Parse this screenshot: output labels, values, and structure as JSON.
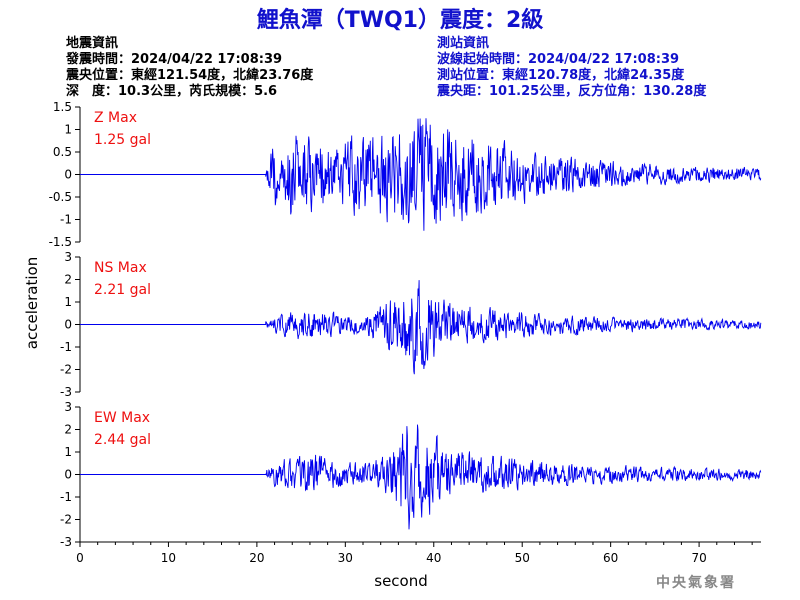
{
  "title": "鯉魚潭（TWQ1）震度：2級",
  "quake_info": {
    "heading": "地震資訊",
    "time": "發震時間：2024/04/22 17:08:39",
    "epicenter": "震央位置：東經121.54度，北緯23.76度",
    "depth_magnitude": "深　度：10.3公里，芮氏規模：5.6"
  },
  "station_info": {
    "heading": "測站資訊",
    "wave_start": "波線起始時間：2024/04/22 17:08:39",
    "location": "測站位置：東經120.78度，北緯24.35度",
    "distance": "震央距：101.25公里，反方位角：130.28度"
  },
  "colors": {
    "trace": "#0000ee",
    "title": "#1111cc",
    "max_label": "#ee1111",
    "axis": "#000000"
  },
  "chart_data": {
    "type": "line",
    "xlabel": "second",
    "ylabel": "acceleration",
    "xlim": [
      0,
      77
    ],
    "xticks": [
      0,
      10,
      20,
      30,
      40,
      50,
      60,
      70
    ],
    "onset_seconds": 21,
    "panels": [
      {
        "name": "Z",
        "max_label": "Z Max",
        "max_value": "1.25 gal",
        "peak": 1.25,
        "ylim": [
          -1.5,
          1.5
        ],
        "yticks": [
          -1.5,
          -1,
          -0.5,
          0,
          0.5,
          1,
          1.5
        ],
        "envelope": [
          [
            21,
            0.15
          ],
          [
            22,
            0.7
          ],
          [
            23,
            0.55
          ],
          [
            24,
            0.85
          ],
          [
            25,
            0.9
          ],
          [
            27,
            0.7
          ],
          [
            29,
            0.55
          ],
          [
            31,
            0.7
          ],
          [
            33,
            0.75
          ],
          [
            35,
            0.85
          ],
          [
            37,
            1.05
          ],
          [
            38,
            1.2
          ],
          [
            40,
            1.0
          ],
          [
            42,
            0.9
          ],
          [
            45,
            0.75
          ],
          [
            48,
            0.55
          ],
          [
            52,
            0.4
          ],
          [
            57,
            0.3
          ],
          [
            63,
            0.2
          ],
          [
            70,
            0.15
          ],
          [
            77,
            0.12
          ]
        ]
      },
      {
        "name": "NS",
        "max_label": "NS Max",
        "max_value": "2.21 gal",
        "peak": 2.21,
        "ylim": [
          -3,
          3
        ],
        "yticks": [
          -3,
          -2,
          -1,
          0,
          1,
          2,
          3
        ],
        "envelope": [
          [
            21,
            0.15
          ],
          [
            22,
            0.35
          ],
          [
            24,
            0.6
          ],
          [
            26,
            0.7
          ],
          [
            28,
            0.6
          ],
          [
            30,
            0.45
          ],
          [
            32,
            0.4
          ],
          [
            34,
            0.9
          ],
          [
            36,
            1.5
          ],
          [
            37,
            2.1
          ],
          [
            38,
            2.0
          ],
          [
            39,
            1.9
          ],
          [
            40,
            1.6
          ],
          [
            41,
            1.2
          ],
          [
            43,
            0.9
          ],
          [
            46,
            0.75
          ],
          [
            50,
            0.6
          ],
          [
            55,
            0.45
          ],
          [
            60,
            0.35
          ],
          [
            65,
            0.3
          ],
          [
            70,
            0.25
          ],
          [
            77,
            0.2
          ]
        ]
      },
      {
        "name": "EW",
        "max_label": "EW Max",
        "max_value": "2.44 gal",
        "peak": 2.44,
        "ylim": [
          -3,
          3
        ],
        "yticks": [
          -3,
          -2,
          -1,
          0,
          1,
          2,
          3
        ],
        "envelope": [
          [
            21,
            0.2
          ],
          [
            22,
            0.5
          ],
          [
            23,
            0.6
          ],
          [
            25,
            0.75
          ],
          [
            27,
            0.8
          ],
          [
            28,
            0.6
          ],
          [
            30,
            0.45
          ],
          [
            33,
            0.5
          ],
          [
            35,
            0.8
          ],
          [
            36,
            1.5
          ],
          [
            37,
            2.2
          ],
          [
            38,
            2.0
          ],
          [
            39,
            1.8
          ],
          [
            40,
            1.6
          ],
          [
            41,
            1.3
          ],
          [
            42,
            1.0
          ],
          [
            44,
            0.9
          ],
          [
            47,
            0.75
          ],
          [
            50,
            0.6
          ],
          [
            55,
            0.45
          ],
          [
            60,
            0.35
          ],
          [
            65,
            0.3
          ],
          [
            70,
            0.25
          ],
          [
            77,
            0.2
          ]
        ]
      }
    ]
  },
  "logo": "中央氣象署"
}
